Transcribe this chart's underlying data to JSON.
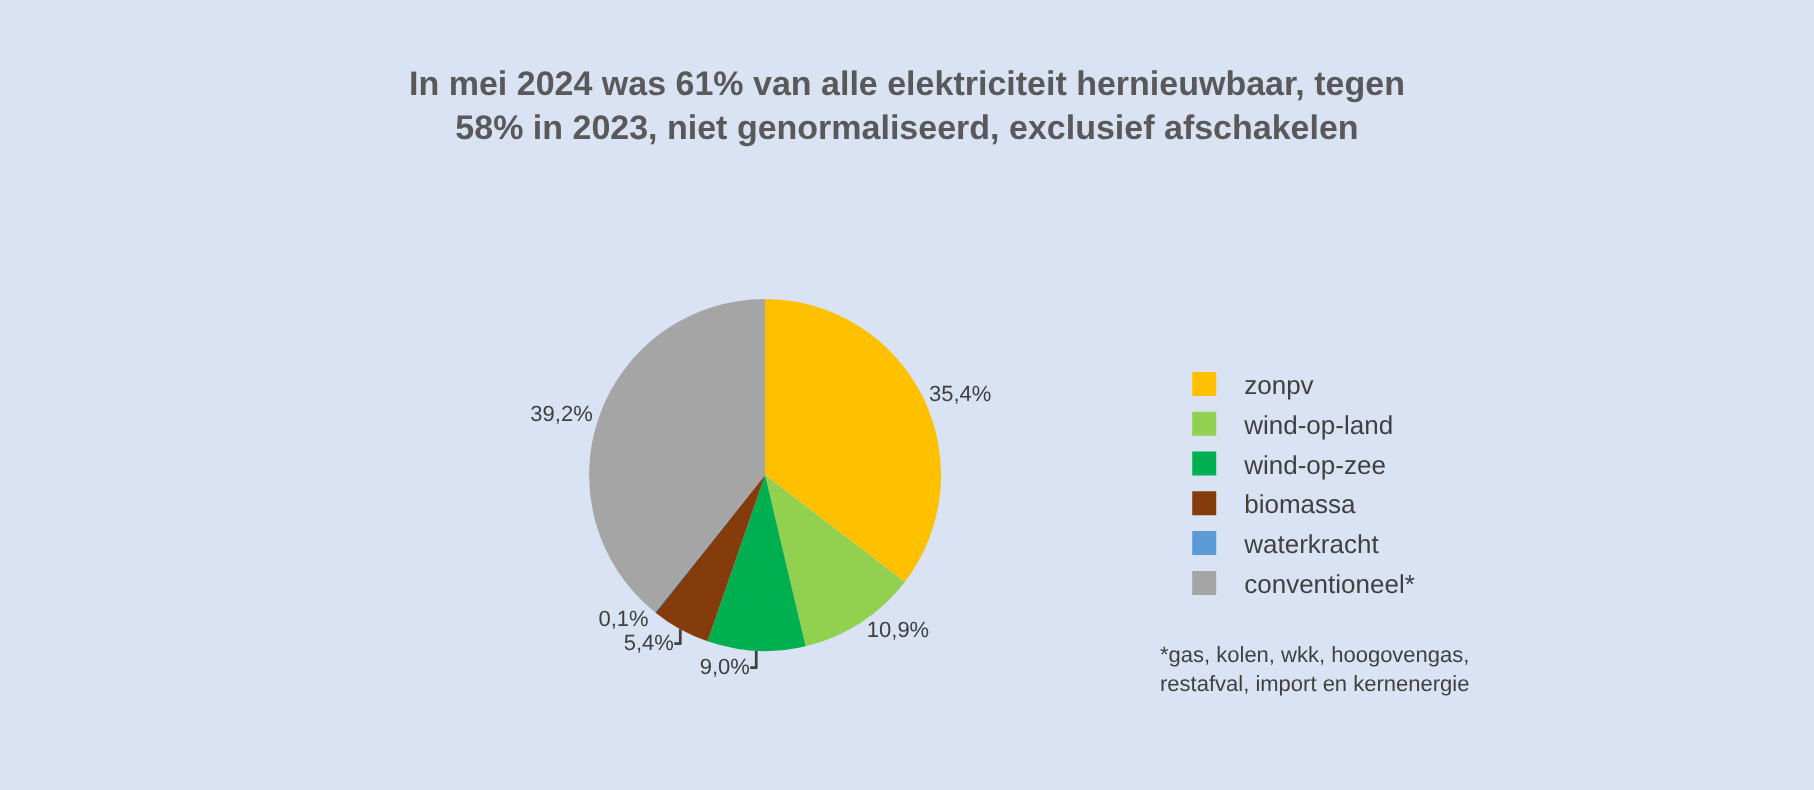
{
  "chart_data": {
    "type": "pie",
    "title": "In mei 2024 was 61% van alle elektriciteit hernieuwbaar, tegen 58% in 2023, niet genormaliseerd, exclusief afschakelen",
    "categories": [
      "zonpv",
      "wind-op-land",
      "wind-op-zee",
      "biomassa",
      "waterkracht",
      "conventioneel*"
    ],
    "values": [
      35.4,
      10.9,
      9.0,
      5.4,
      0.1,
      39.2
    ],
    "value_labels": [
      "35,4%",
      "10,9%",
      "9,0%",
      "5,4%",
      "0,1%",
      "39,2%"
    ],
    "colors": [
      "#ffc000",
      "#92d050",
      "#00b050",
      "#843c0c",
      "#5b9bd5",
      "#a5a5a5"
    ],
    "legend": "right",
    "annotations": [
      "*gas, kolen, wkk, hoogovengas, restafval, import en kernenergie"
    ]
  }
}
